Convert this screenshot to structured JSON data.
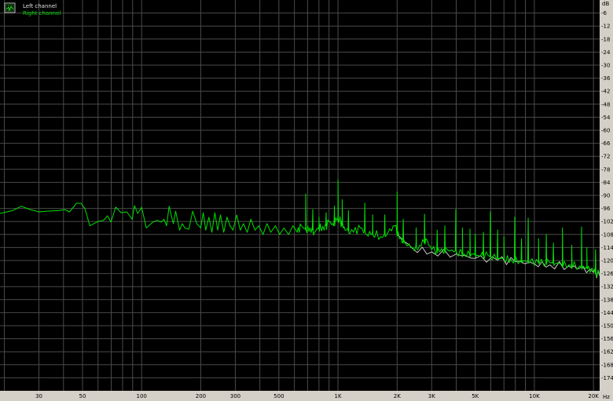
{
  "chart_data": {
    "type": "line",
    "title": "",
    "xlabel": "",
    "ylabel": "",
    "x_unit": "Hz",
    "y_unit": "dB",
    "x_scale": "log",
    "xlim": [
      19,
      21500
    ],
    "ylim": [
      -180,
      0
    ],
    "grid": true,
    "legend_placement": "top-left",
    "background": "#000000",
    "x_ticks": [
      {
        "value": 30,
        "label": "30"
      },
      {
        "value": 50,
        "label": "50"
      },
      {
        "value": 100,
        "label": "100"
      },
      {
        "value": 200,
        "label": "200"
      },
      {
        "value": 300,
        "label": "300"
      },
      {
        "value": 500,
        "label": "500"
      },
      {
        "value": 1000,
        "label": "1K"
      },
      {
        "value": 2000,
        "label": "2K"
      },
      {
        "value": 3000,
        "label": "3K"
      },
      {
        "value": 5000,
        "label": "5K"
      },
      {
        "value": 10000,
        "label": "10K"
      },
      {
        "value": 20000,
        "label": "20K"
      }
    ],
    "x_gridlines": [
      20,
      30,
      40,
      50,
      60,
      70,
      80,
      90,
      100,
      200,
      300,
      400,
      500,
      600,
      700,
      800,
      900,
      1000,
      2000,
      3000,
      4000,
      5000,
      6000,
      7000,
      8000,
      9000,
      10000,
      20000
    ],
    "y_ticks": [
      -6,
      -12,
      -18,
      -24,
      -30,
      -36,
      -42,
      -48,
      -54,
      -60,
      -66,
      -72,
      -78,
      -84,
      -90,
      -96,
      -102,
      -108,
      -114,
      -120,
      -126,
      -132,
      -138,
      -144,
      -150,
      -156,
      -162,
      -168,
      -174
    ],
    "series": [
      {
        "name": "Left channel",
        "color": "#c8c8c8",
        "points": [
          [
            2000,
            -108
          ],
          [
            2400,
            -114.5
          ],
          [
            3000,
            -116
          ],
          [
            4000,
            -117
          ],
          [
            5000,
            -119
          ],
          [
            6500,
            -119.8
          ],
          [
            8000,
            -120.5
          ],
          [
            10000,
            -121.5
          ],
          [
            12000,
            -122
          ],
          [
            15000,
            -122.5
          ],
          [
            17000,
            -123.5
          ],
          [
            20000,
            -125.5
          ],
          [
            21500,
            -127
          ]
        ]
      },
      {
        "name": "Right channel",
        "color": "#00e000",
        "points": [
          [
            19,
            -98.3
          ],
          [
            22,
            -97
          ],
          [
            24.4,
            -95
          ],
          [
            27,
            -96.5
          ],
          [
            30,
            -97.6
          ],
          [
            34,
            -97.2
          ],
          [
            38,
            -97
          ],
          [
            40.5,
            -96.5
          ],
          [
            42.9,
            -97.6
          ],
          [
            46.6,
            -93.6
          ],
          [
            49.2,
            -93.6
          ],
          [
            51.5,
            -96.2
          ],
          [
            54.5,
            -104
          ],
          [
            60,
            -102
          ],
          [
            64,
            -101.5
          ],
          [
            67,
            -99.4
          ],
          [
            69.8,
            -102.3
          ],
          [
            73.8,
            -95.4
          ],
          [
            78.7,
            -98
          ],
          [
            84,
            -97.6
          ],
          [
            89.5,
            -101
          ],
          [
            92,
            -94.7
          ],
          [
            95.5,
            -98.3
          ],
          [
            100,
            -95.5
          ],
          [
            105.7,
            -105
          ],
          [
            114,
            -102.3
          ],
          [
            120,
            -101.5
          ],
          [
            126,
            -102.3
          ],
          [
            130,
            -101
          ],
          [
            134,
            -104
          ],
          [
            138,
            -95
          ],
          [
            145,
            -103
          ],
          [
            149,
            -97.3
          ],
          [
            156,
            -106
          ],
          [
            161,
            -103
          ],
          [
            166,
            -105
          ],
          [
            174,
            -105.6
          ],
          [
            182,
            -97.3
          ],
          [
            191,
            -103
          ],
          [
            200,
            -105
          ],
          [
            206,
            -98
          ],
          [
            212,
            -106
          ],
          [
            220,
            -100
          ],
          [
            228,
            -107
          ],
          [
            236,
            -98
          ],
          [
            244,
            -106
          ],
          [
            252,
            -99
          ],
          [
            262,
            -107
          ],
          [
            272,
            -100
          ],
          [
            282,
            -104
          ],
          [
            292,
            -106
          ],
          [
            305,
            -99
          ],
          [
            318,
            -106
          ],
          [
            330,
            -103
          ],
          [
            345,
            -107
          ],
          [
            360,
            -101
          ],
          [
            378,
            -106
          ],
          [
            395,
            -104
          ],
          [
            415,
            -108
          ],
          [
            435,
            -103
          ],
          [
            455,
            -107
          ],
          [
            480,
            -104
          ],
          [
            505,
            -108
          ],
          [
            530,
            -105
          ],
          [
            560,
            -108
          ],
          [
            590,
            -104
          ],
          [
            620,
            -107
          ],
          [
            650,
            -104
          ],
          [
            685,
            -106
          ],
          [
            720,
            -105
          ],
          [
            760,
            -107
          ],
          [
            800,
            -104
          ],
          [
            850,
            -106
          ],
          [
            900,
            -102
          ],
          [
            950,
            -104
          ],
          [
            1000,
            -99
          ],
          [
            1050,
            -104
          ],
          [
            1100,
            -106
          ],
          [
            1200,
            -107
          ],
          [
            1300,
            -105
          ],
          [
            1400,
            -108
          ],
          [
            1500,
            -107
          ],
          [
            1650,
            -109
          ],
          [
            1800,
            -107
          ],
          [
            1950,
            -104
          ],
          [
            2050,
            -110
          ],
          [
            2200,
            -112
          ],
          [
            2400,
            -114
          ],
          [
            2600,
            -113
          ],
          [
            2800,
            -110
          ],
          [
            3000,
            -115
          ],
          [
            3300,
            -116
          ],
          [
            3600,
            -115
          ],
          [
            4000,
            -116
          ],
          [
            4400,
            -117
          ],
          [
            4800,
            -117
          ],
          [
            5300,
            -118
          ],
          [
            5800,
            -117.5
          ],
          [
            6400,
            -119
          ],
          [
            7000,
            -119
          ],
          [
            7600,
            -119.5
          ],
          [
            8500,
            -120
          ],
          [
            9500,
            -120.5
          ],
          [
            10500,
            -121
          ],
          [
            12000,
            -121
          ],
          [
            13500,
            -121.5
          ],
          [
            15000,
            -122
          ],
          [
            17000,
            -122.5
          ],
          [
            18500,
            -123.5
          ],
          [
            20000,
            -125
          ],
          [
            21500,
            -126.5
          ]
        ],
        "spikes": [
          [
            685,
            -89.3
          ],
          [
            744,
            -96.5
          ],
          [
            800,
            -100
          ],
          [
            870,
            -98
          ],
          [
            960,
            -95
          ],
          [
            1000,
            -82.8
          ],
          [
            1050,
            -92
          ],
          [
            1130,
            -97
          ],
          [
            1370,
            -93.6
          ],
          [
            1500,
            -99
          ],
          [
            1730,
            -99
          ],
          [
            2000,
            -88.5
          ],
          [
            2150,
            -101
          ],
          [
            2500,
            -105
          ],
          [
            2760,
            -98.7
          ],
          [
            3200,
            -106
          ],
          [
            3500,
            -104
          ],
          [
            3980,
            -96.5
          ],
          [
            4300,
            -105
          ],
          [
            4700,
            -105.5
          ],
          [
            5000,
            -108
          ],
          [
            5500,
            -107
          ],
          [
            5970,
            -97.6
          ],
          [
            6500,
            -106
          ],
          [
            7000,
            -109
          ],
          [
            7950,
            -100
          ],
          [
            8600,
            -110
          ],
          [
            9300,
            -100.5
          ],
          [
            10500,
            -110
          ],
          [
            11500,
            -108
          ],
          [
            12500,
            -112
          ],
          [
            13900,
            -105
          ],
          [
            15500,
            -113
          ],
          [
            17400,
            -104.5
          ],
          [
            18500,
            -114
          ],
          [
            20500,
            -115
          ]
        ]
      }
    ]
  },
  "legend": {
    "left_label": "Left channel",
    "right_label": "Right channel",
    "icon": "spectrum-icon"
  },
  "axis": {
    "y_unit_label": "dB",
    "x_unit_label": "Hz"
  }
}
